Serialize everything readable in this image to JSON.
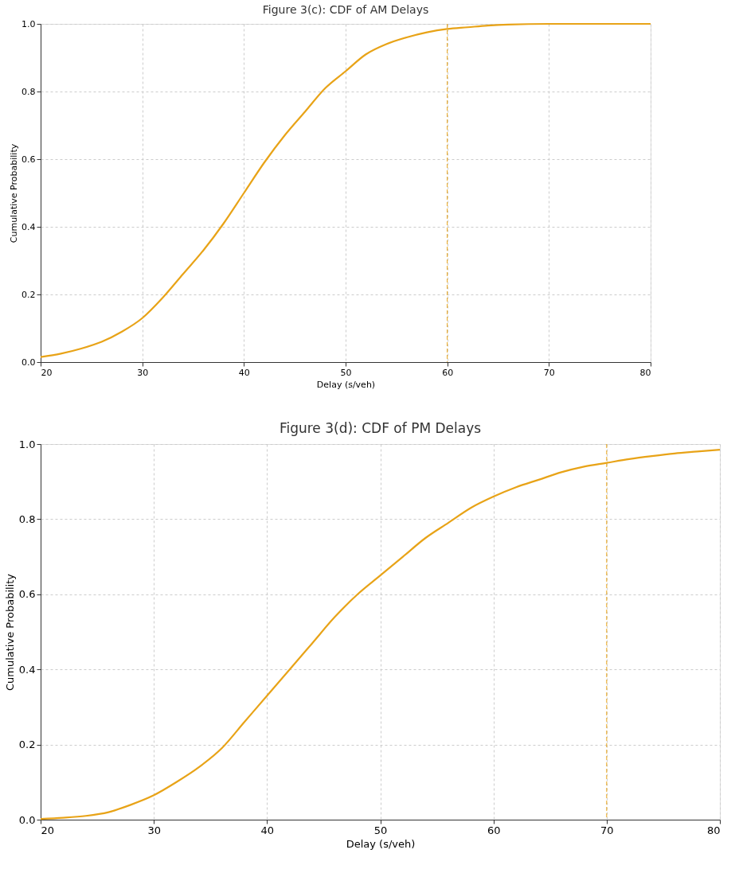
{
  "chart_data": [
    {
      "type": "line",
      "title": "Figure 3(c): CDF of AM Delays",
      "xlabel": "Delay (s/veh)",
      "ylabel": "Cumulative Probability",
      "x": [
        20,
        22,
        24,
        26,
        28,
        30,
        32,
        34,
        36,
        38,
        40,
        42,
        44,
        46,
        48,
        50,
        52,
        54,
        56,
        58,
        60,
        62,
        64,
        66,
        70,
        75,
        80
      ],
      "series": [
        {
          "color": "#e8a317",
          "values": [
            0.015,
            0.025,
            0.04,
            0.06,
            0.09,
            0.13,
            0.19,
            0.26,
            0.33,
            0.41,
            0.5,
            0.59,
            0.67,
            0.74,
            0.81,
            0.86,
            0.91,
            0.94,
            0.96,
            0.975,
            0.985,
            0.99,
            0.995,
            0.998,
            1.0,
            1.0,
            1.0
          ]
        }
      ],
      "xlim": [
        20,
        80
      ],
      "xticks": [
        20,
        30,
        40,
        50,
        60,
        70,
        80
      ],
      "ylim": [
        0,
        1
      ],
      "yticks": [
        {
          "value": 0,
          "label": "0.0"
        },
        {
          "value": 0.2,
          "label": "0.2"
        },
        {
          "value": 0.4,
          "label": "0.4"
        },
        {
          "value": 0.6,
          "label": "0.6"
        },
        {
          "value": 0.8,
          "label": "0.8"
        },
        {
          "value": 1,
          "label": "1.0"
        }
      ],
      "ref_lines": [
        {
          "axis": "x",
          "value": 60,
          "color": "#e8a317",
          "line_style": "dashed"
        }
      ],
      "grid": true,
      "marker": "none",
      "line_style": "solid"
    },
    {
      "type": "line",
      "title": "Figure 3(d): CDF of PM Delays",
      "xlabel": "Delay (s/veh)",
      "ylabel": "Cumulative Probability",
      "x": [
        20,
        22,
        24,
        26,
        28,
        30,
        32,
        34,
        36,
        38,
        40,
        42,
        44,
        46,
        48,
        50,
        52,
        54,
        56,
        58,
        60,
        62,
        64,
        66,
        68,
        70,
        72,
        74,
        76,
        78,
        80
      ],
      "series": [
        {
          "color": "#e8a317",
          "values": [
            0.002,
            0.005,
            0.01,
            0.02,
            0.04,
            0.065,
            0.1,
            0.14,
            0.19,
            0.26,
            0.33,
            0.4,
            0.47,
            0.54,
            0.6,
            0.65,
            0.7,
            0.75,
            0.79,
            0.83,
            0.86,
            0.885,
            0.905,
            0.925,
            0.94,
            0.95,
            0.96,
            0.968,
            0.975,
            0.98,
            0.985
          ]
        }
      ],
      "xlim": [
        20,
        80
      ],
      "xticks": [
        20,
        30,
        40,
        50,
        60,
        70,
        80
      ],
      "ylim": [
        0,
        1
      ],
      "yticks": [
        {
          "value": 0,
          "label": "0.0"
        },
        {
          "value": 0.2,
          "label": "0.2"
        },
        {
          "value": 0.4,
          "label": "0.4"
        },
        {
          "value": 0.6,
          "label": "0.6"
        },
        {
          "value": 0.8,
          "label": "0.8"
        },
        {
          "value": 1,
          "label": "1.0"
        }
      ],
      "ref_lines": [
        {
          "axis": "x",
          "value": 70,
          "color": "#e8a317",
          "line_style": "dashed"
        }
      ],
      "grid": true,
      "marker": "none",
      "line_style": "solid"
    }
  ]
}
